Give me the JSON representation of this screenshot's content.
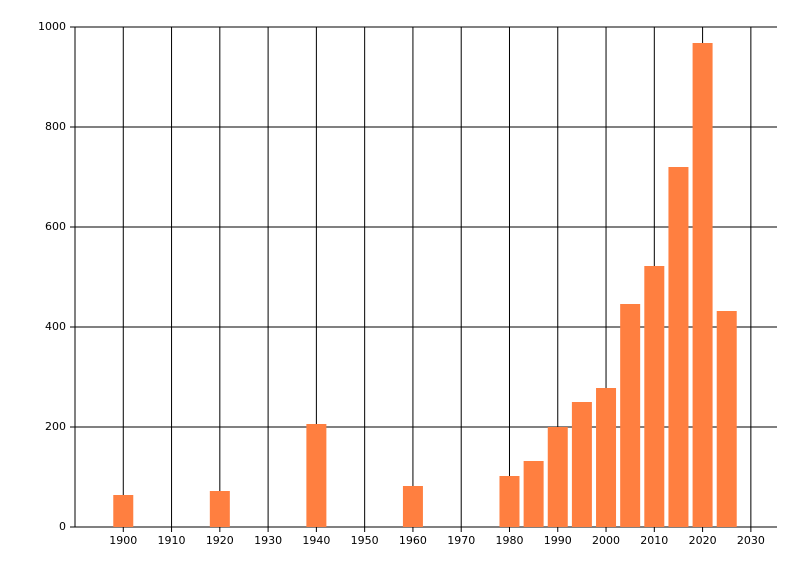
{
  "chart_data": {
    "type": "bar",
    "x": [
      1900,
      1920,
      1940,
      1960,
      1980,
      1985,
      1990,
      1995,
      2000,
      2005,
      2010,
      2015,
      2020,
      2025
    ],
    "values": [
      64,
      72,
      206,
      82,
      102,
      132,
      200,
      250,
      278,
      446,
      522,
      720,
      968,
      432
    ],
    "color": "#ff7f40",
    "xlim": [
      1890,
      2035
    ],
    "xticks": [
      1900,
      1910,
      1920,
      1930,
      1940,
      1950,
      1960,
      1970,
      1980,
      1990,
      2000,
      2010,
      2020,
      2030
    ],
    "ylim": [
      0,
      1000
    ],
    "yticks": [
      0,
      200,
      400,
      600,
      800,
      1000
    ],
    "grid": true
  }
}
